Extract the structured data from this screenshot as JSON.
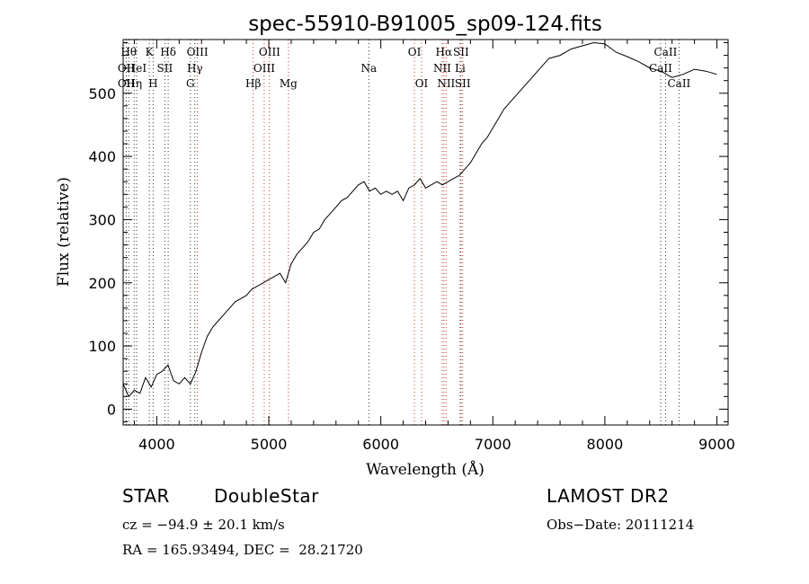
{
  "chart_data": {
    "type": "line",
    "title": "spec-55910-B91005_sp09-124.fits",
    "xlabel": "Wavelength (Å)",
    "ylabel": "Flux (relative)",
    "xlim": [
      3700,
      9100
    ],
    "ylim": [
      -25,
      585
    ],
    "xticks": [
      4000,
      5000,
      6000,
      7000,
      8000,
      9000
    ],
    "yticks": [
      0,
      100,
      200,
      300,
      400,
      500
    ],
    "x": [
      3700,
      3750,
      3800,
      3850,
      3900,
      3950,
      4000,
      4050,
      4100,
      4150,
      4200,
      4250,
      4300,
      4350,
      4400,
      4450,
      4500,
      4550,
      4600,
      4650,
      4700,
      4750,
      4800,
      4850,
      4900,
      4950,
      5000,
      5050,
      5100,
      5150,
      5200,
      5250,
      5300,
      5350,
      5400,
      5450,
      5500,
      5550,
      5600,
      5650,
      5700,
      5750,
      5800,
      5850,
      5900,
      5950,
      6000,
      6050,
      6100,
      6150,
      6200,
      6250,
      6300,
      6350,
      6400,
      6450,
      6500,
      6550,
      6600,
      6650,
      6700,
      6750,
      6800,
      6850,
      6900,
      6950,
      7000,
      7050,
      7100,
      7150,
      7200,
      7250,
      7300,
      7350,
      7400,
      7450,
      7500,
      7600,
      7700,
      7800,
      7900,
      8000,
      8100,
      8200,
      8300,
      8400,
      8500,
      8600,
      8700,
      8800,
      8900,
      9000
    ],
    "y": [
      40,
      20,
      30,
      25,
      50,
      35,
      55,
      60,
      70,
      45,
      40,
      50,
      40,
      60,
      90,
      115,
      130,
      140,
      150,
      160,
      170,
      175,
      180,
      190,
      195,
      200,
      205,
      210,
      215,
      200,
      230,
      245,
      255,
      265,
      280,
      285,
      300,
      310,
      320,
      330,
      335,
      345,
      355,
      360,
      345,
      350,
      340,
      345,
      340,
      345,
      330,
      350,
      355,
      365,
      350,
      355,
      360,
      355,
      360,
      365,
      370,
      380,
      390,
      405,
      420,
      430,
      445,
      460,
      475,
      485,
      495,
      505,
      515,
      525,
      535,
      545,
      555,
      560,
      570,
      575,
      580,
      578,
      565,
      558,
      550,
      540,
      535,
      525,
      530,
      538,
      535,
      530
    ],
    "lines": [
      {
        "wl": 3750,
        "label": "Hθ",
        "row": 0,
        "color": "#333333"
      },
      {
        "wl": 3728,
        "label": "OII",
        "row": 1,
        "color": "#333333"
      },
      {
        "wl": 3728,
        "label": "OII",
        "row": 2,
        "color": "#333333"
      },
      {
        "wl": 3798,
        "label": "Hη",
        "row": 2,
        "color": "#333333"
      },
      {
        "wl": 3820,
        "label": "HeI",
        "row": 1,
        "color": "#333333"
      },
      {
        "wl": 3934,
        "label": "K",
        "row": 0,
        "color": "#333333"
      },
      {
        "wl": 3968,
        "label": "H",
        "row": 2,
        "color": "#333333"
      },
      {
        "wl": 4072,
        "label": "SII",
        "row": 1,
        "color": "#333333"
      },
      {
        "wl": 4102,
        "label": "Hδ",
        "row": 0,
        "color": "#333333"
      },
      {
        "wl": 4300,
        "label": "G",
        "row": 2,
        "color": "#333333"
      },
      {
        "wl": 4340,
        "label": "Hγ",
        "row": 1,
        "color": "#333333"
      },
      {
        "wl": 4363,
        "label": "OIII",
        "row": 0,
        "color": "#c0392b"
      },
      {
        "wl": 4861,
        "label": "Hβ",
        "row": 2,
        "color": "#c0392b"
      },
      {
        "wl": 4959,
        "label": "OIII",
        "row": 1,
        "color": "#c0392b"
      },
      {
        "wl": 5007,
        "label": "OIII",
        "row": 0,
        "color": "#c0392b"
      },
      {
        "wl": 5175,
        "label": "Mg",
        "row": 2,
        "color": "#c0392b"
      },
      {
        "wl": 5893,
        "label": "Na",
        "row": 1,
        "color": "#333333"
      },
      {
        "wl": 6300,
        "label": "OI",
        "row": 0,
        "color": "#c0392b"
      },
      {
        "wl": 6364,
        "label": "OI",
        "row": 2,
        "color": "#c0392b"
      },
      {
        "wl": 6548,
        "label": "NII",
        "row": 1,
        "color": "#c0392b"
      },
      {
        "wl": 6563,
        "label": "Hα",
        "row": 0,
        "color": "#c0392b"
      },
      {
        "wl": 6583,
        "label": "NII",
        "row": 2,
        "color": "#c0392b"
      },
      {
        "wl": 6708,
        "label": "Li",
        "row": 1,
        "color": "#333333"
      },
      {
        "wl": 6716,
        "label": "SII",
        "row": 0,
        "color": "#c0392b"
      },
      {
        "wl": 6731,
        "label": "SII",
        "row": 2,
        "color": "#c0392b"
      },
      {
        "wl": 8498,
        "label": "CaII",
        "row": 1,
        "color": "#333333"
      },
      {
        "wl": 8542,
        "label": "CaII",
        "row": 0,
        "color": "#333333"
      },
      {
        "wl": 8662,
        "label": "CaII",
        "row": 2,
        "color": "#333333"
      }
    ]
  },
  "info": {
    "class": "STAR",
    "subclass": "DoubleStar",
    "survey": "LAMOST DR2",
    "cz": "cz = −94.9 ± 20.1 km/s",
    "obs_date": "Obs−Date: 20111214",
    "coords": "RA = 165.93494, DEC =  28.21720"
  }
}
